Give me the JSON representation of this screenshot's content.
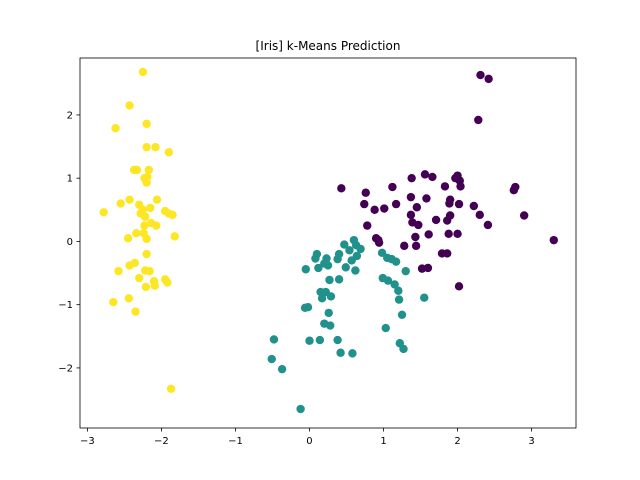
{
  "chart_data": {
    "type": "scatter",
    "title": "[Iris] k-Means Prediction",
    "xlabel": "",
    "ylabel": "",
    "xlim": [
      -3.1,
      3.6
    ],
    "ylim": [
      -2.95,
      2.9
    ],
    "xticks": [
      -3,
      -2,
      -1,
      0,
      1,
      2,
      3
    ],
    "yticks": [
      -2,
      -1,
      0,
      1,
      2
    ],
    "x_tick_labels": [
      "−3",
      "−2",
      "−1",
      "0",
      "1",
      "2",
      "3"
    ],
    "y_tick_labels": [
      "−2",
      "−1",
      "0",
      "1",
      "2"
    ],
    "grid": false,
    "legend": "none",
    "series": [
      {
        "color": "#fde725",
        "points": [
          [
            -2.25,
            2.68
          ],
          [
            -2.43,
            2.15
          ],
          [
            -2.62,
            1.79
          ],
          [
            -2.2,
            1.86
          ],
          [
            -2.2,
            1.49
          ],
          [
            -2.08,
            1.49
          ],
          [
            -1.9,
            1.41
          ],
          [
            -2.37,
            1.13
          ],
          [
            -2.33,
            1.13
          ],
          [
            -2.17,
            1.13
          ],
          [
            -2.19,
            1.02
          ],
          [
            -2.23,
            1.0
          ],
          [
            -2.2,
            0.93
          ],
          [
            -2.43,
            0.66
          ],
          [
            -2.55,
            0.6
          ],
          [
            -2.06,
            0.66
          ],
          [
            -2.3,
            0.58
          ],
          [
            -2.78,
            0.46
          ],
          [
            -2.15,
            0.53
          ],
          [
            -2.25,
            0.5
          ],
          [
            -2.28,
            0.44
          ],
          [
            -1.95,
            0.48
          ],
          [
            -1.9,
            0.44
          ],
          [
            -1.85,
            0.42
          ],
          [
            -2.22,
            0.39
          ],
          [
            -2.14,
            0.29
          ],
          [
            -2.23,
            0.25
          ],
          [
            -2.07,
            0.25
          ],
          [
            -2.34,
            0.13
          ],
          [
            -2.24,
            0.13
          ],
          [
            -2.45,
            0.05
          ],
          [
            -2.2,
            0.04
          ],
          [
            -1.82,
            0.08
          ],
          [
            -2.2,
            -0.2
          ],
          [
            -2.36,
            -0.34
          ],
          [
            -2.43,
            -0.38
          ],
          [
            -2.22,
            -0.46
          ],
          [
            -2.58,
            -0.47
          ],
          [
            -2.16,
            -0.47
          ],
          [
            -2.3,
            -0.58
          ],
          [
            -1.95,
            -0.6
          ],
          [
            -2.1,
            -0.63
          ],
          [
            -1.92,
            -0.65
          ],
          [
            -2.21,
            -0.72
          ],
          [
            -2.09,
            -0.7
          ],
          [
            -2.44,
            -0.9
          ],
          [
            -2.65,
            -0.96
          ],
          [
            -2.35,
            -1.11
          ],
          [
            -1.87,
            -2.33
          ]
        ]
      },
      {
        "color": "#21918c",
        "points": [
          [
            0.47,
            -0.05
          ],
          [
            0.6,
            0.02
          ],
          [
            0.63,
            -0.06
          ],
          [
            0.54,
            -0.14
          ],
          [
            0.69,
            -0.12
          ],
          [
            0.4,
            -0.2
          ],
          [
            0.64,
            -0.23
          ],
          [
            0.38,
            -0.28
          ],
          [
            0.57,
            -0.3
          ],
          [
            0.1,
            -0.2
          ],
          [
            0.08,
            -0.27
          ],
          [
            0.23,
            -0.27
          ],
          [
            0.2,
            -0.35
          ],
          [
            0.25,
            -0.38
          ],
          [
            0.12,
            -0.42
          ],
          [
            0.49,
            -0.41
          ],
          [
            -0.05,
            -0.44
          ],
          [
            0.62,
            -0.46
          ],
          [
            0.27,
            -0.61
          ],
          [
            0.4,
            -0.6
          ],
          [
            0.98,
            -0.18
          ],
          [
            1.05,
            -0.26
          ],
          [
            1.11,
            -0.28
          ],
          [
            1.17,
            -0.32
          ],
          [
            1.3,
            -0.47
          ],
          [
            0.99,
            -0.58
          ],
          [
            1.06,
            -0.62
          ],
          [
            1.15,
            -0.68
          ],
          [
            1.2,
            -0.78
          ],
          [
            1.21,
            -0.92
          ],
          [
            1.55,
            -0.89
          ],
          [
            1.25,
            -1.16
          ],
          [
            1.03,
            -1.37
          ],
          [
            1.22,
            -1.61
          ],
          [
            1.27,
            -1.7
          ],
          [
            0.15,
            -0.8
          ],
          [
            0.22,
            -0.8
          ],
          [
            0.29,
            -0.87
          ],
          [
            0.17,
            -0.9
          ],
          [
            -0.06,
            -1.05
          ],
          [
            -0.02,
            -1.04
          ],
          [
            0.26,
            -1.13
          ],
          [
            0.2,
            -1.3
          ],
          [
            0.28,
            -1.33
          ],
          [
            0.38,
            -1.56
          ],
          [
            0.0,
            -1.57
          ],
          [
            0.14,
            -1.56
          ],
          [
            -0.48,
            -1.55
          ],
          [
            0.42,
            -1.76
          ],
          [
            0.58,
            -1.77
          ],
          [
            -0.51,
            -1.86
          ],
          [
            -0.37,
            -2.02
          ],
          [
            -0.12,
            -2.65
          ]
        ]
      },
      {
        "color": "#440154",
        "points": [
          [
            2.31,
            2.63
          ],
          [
            2.42,
            2.57
          ],
          [
            2.28,
            1.92
          ],
          [
            1.56,
            1.06
          ],
          [
            1.66,
            1.02
          ],
          [
            1.38,
            1.0
          ],
          [
            1.97,
            1.0
          ],
          [
            2.0,
            1.04
          ],
          [
            2.03,
            0.96
          ],
          [
            1.83,
            0.87
          ],
          [
            2.04,
            0.87
          ],
          [
            1.12,
            0.86
          ],
          [
            0.43,
            0.84
          ],
          [
            2.76,
            0.81
          ],
          [
            2.78,
            0.86
          ],
          [
            0.76,
            0.77
          ],
          [
            1.37,
            0.7
          ],
          [
            1.58,
            0.68
          ],
          [
            1.9,
            0.66
          ],
          [
            1.89,
            0.6
          ],
          [
            2.02,
            0.59
          ],
          [
            2.22,
            0.56
          ],
          [
            0.74,
            0.59
          ],
          [
            1.17,
            0.59
          ],
          [
            1.45,
            0.54
          ],
          [
            0.88,
            0.5
          ],
          [
            1.01,
            0.52
          ],
          [
            2.3,
            0.42
          ],
          [
            2.9,
            0.41
          ],
          [
            1.37,
            0.42
          ],
          [
            1.9,
            0.41
          ],
          [
            1.86,
            0.33
          ],
          [
            1.71,
            0.34
          ],
          [
            1.39,
            0.3
          ],
          [
            1.47,
            0.26
          ],
          [
            2.41,
            0.26
          ],
          [
            0.78,
            0.25
          ],
          [
            1.61,
            0.11
          ],
          [
            1.88,
            0.12
          ],
          [
            2.0,
            0.12
          ],
          [
            1.43,
            0.07
          ],
          [
            0.93,
            0.02
          ],
          [
            0.9,
            0.05
          ],
          [
            0.94,
            -0.02
          ],
          [
            1.28,
            -0.07
          ],
          [
            1.44,
            -0.07
          ],
          [
            3.3,
            0.02
          ],
          [
            1.79,
            -0.19
          ],
          [
            1.86,
            -0.19
          ],
          [
            1.6,
            -0.42
          ],
          [
            1.52,
            -0.43
          ],
          [
            2.02,
            -0.71
          ]
        ]
      }
    ]
  }
}
